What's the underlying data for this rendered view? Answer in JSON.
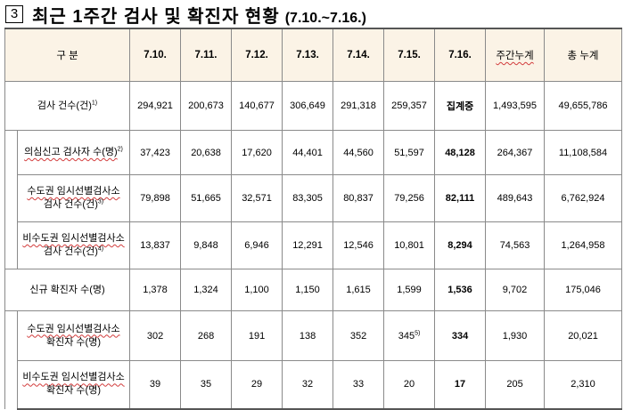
{
  "title": {
    "number": "3",
    "text": "최근 1주간 검사 및 확진자 현황",
    "date_range": "(7.10.~7.16.)"
  },
  "table": {
    "header": {
      "category": "구 분",
      "days": [
        "7.10.",
        "7.11.",
        "7.12.",
        "7.13.",
        "7.14.",
        "7.15.",
        "7.16."
      ],
      "weekly_total": "주간누계",
      "total": "총 누계"
    },
    "rows": [
      {
        "label": "검사 건수(건)",
        "sup": "1)",
        "values": [
          "294,921",
          "200,673",
          "140,677",
          "306,649",
          "291,318",
          "259,357",
          "집계중"
        ],
        "weekly": "1,493,595",
        "total": "49,655,786"
      },
      {
        "label": "의심신고 검사자 수(명)",
        "sup": "2)",
        "values": [
          "37,423",
          "20,638",
          "17,620",
          "44,401",
          "44,560",
          "51,597",
          "48,128"
        ],
        "weekly": "264,367",
        "total": "11,108,584"
      },
      {
        "label1": "수도권 임시선별검사소",
        "label2": "검사 건수(건)",
        "sup": "3)",
        "values": [
          "79,898",
          "51,665",
          "32,571",
          "83,305",
          "80,837",
          "79,256",
          "82,111"
        ],
        "weekly": "489,643",
        "total": "6,762,924"
      },
      {
        "label1": "비수도권 임시선별검사소",
        "label2": "검사 건수(건)",
        "sup": "4)",
        "values": [
          "13,837",
          "9,848",
          "6,946",
          "12,291",
          "12,546",
          "10,801",
          "8,294"
        ],
        "weekly": "74,563",
        "total": "1,264,958"
      },
      {
        "label": "신규 확진자 수(명)",
        "values": [
          "1,378",
          "1,324",
          "1,100",
          "1,150",
          "1,615",
          "1,599",
          "1,536"
        ],
        "weekly": "9,702",
        "total": "175,046"
      },
      {
        "label1": "수도권 임시선별검사소",
        "label2": "확진자 수(명)",
        "values": [
          "302",
          "268",
          "191",
          "138",
          "352",
          "345",
          "334"
        ],
        "sup6": "5)",
        "weekly": "1,930",
        "total": "20,021"
      },
      {
        "label1": "비수도권 임시선별검사소",
        "label2": "확진자 수(명)",
        "values": [
          "39",
          "35",
          "29",
          "32",
          "33",
          "20",
          "17"
        ],
        "weekly": "205",
        "total": "2,310"
      }
    ]
  },
  "colors": {
    "header_bg": "#fbf3e6",
    "border": "#8a8a8a",
    "squiggle": "#d23c3c"
  }
}
